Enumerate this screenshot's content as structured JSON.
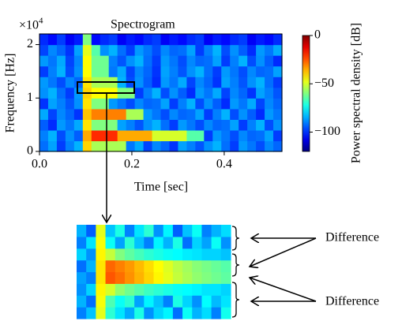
{
  "chart_data": [
    {
      "type": "spectrogram",
      "title": "Spectrogram",
      "xlabel": "Time [sec]",
      "ylabel": "Frequency [Hz]",
      "colorbar_label": "Power spectral density [dB]",
      "y_multiplier": "×10",
      "y_multiplier_exp": "4",
      "colormap": "jet",
      "clim": [
        -120,
        0
      ],
      "colorbar_ticks": [
        0,
        {
          "value": -50,
          "label": "−50"
        },
        {
          "value": -100,
          "label": "−100"
        }
      ],
      "xlim": [
        0,
        0.525
      ],
      "xticks": [
        {
          "value": 0,
          "label": "0.0"
        },
        0.2,
        0.4
      ],
      "ylim": [
        0,
        22000
      ],
      "yticks": [
        0,
        {
          "value": 10000,
          "label": "1"
        },
        {
          "value": 20000,
          "label": "2"
        }
      ],
      "z": [
        [
          -92,
          -86,
          -98,
          -90,
          -84,
          -40,
          -55,
          -55,
          -55,
          -55,
          -91,
          -85,
          -97,
          -89,
          -93,
          -99,
          -86,
          -90,
          -95,
          -88,
          -84,
          -92,
          -98,
          -87,
          -91,
          -96,
          -89,
          -93
        ],
        [
          -90,
          -84,
          -96,
          -88,
          -94,
          -35,
          -20,
          -20,
          -20,
          -35,
          -35,
          -35,
          -35,
          -50,
          -50,
          -50,
          -50,
          -65,
          -65,
          -98,
          -87,
          -91,
          -96,
          -89,
          -93,
          -92,
          -86,
          -98
        ],
        [
          -94,
          -100,
          -87,
          -91,
          -85,
          -42,
          -60,
          -60,
          -60,
          -86,
          -90,
          -95,
          -88,
          -84,
          -92,
          -98,
          -87,
          -91,
          -96,
          -89,
          -93,
          -92,
          -86,
          -98,
          -90,
          -84,
          -96,
          -88
        ],
        [
          -85,
          -97,
          -89,
          -93,
          -99,
          -38,
          -30,
          -30,
          -30,
          -30,
          -55,
          -55,
          -87,
          -91,
          -96,
          -89,
          -93,
          -92,
          -86,
          -98,
          -90,
          -84,
          -96,
          -88,
          -94,
          -100,
          -87,
          -91
        ],
        [
          -99,
          -86,
          -90,
          -95,
          -88,
          -42,
          -60,
          -60,
          -87,
          -91,
          -96,
          -89,
          -93,
          -92,
          -86,
          -98,
          -90,
          -84,
          -96,
          -88,
          -94,
          -100,
          -87,
          -91,
          -85,
          -97,
          -89,
          -93
        ],
        [
          -88,
          -84,
          -92,
          -98,
          -87,
          -40,
          -45,
          -45,
          -45,
          -60,
          -60,
          -98,
          -90,
          -84,
          -96,
          -88,
          -94,
          -100,
          -87,
          -91,
          -85,
          -97,
          -89,
          -93,
          -99,
          -86,
          -90,
          -95
        ],
        [
          -87,
          -91,
          -96,
          -89,
          -93,
          -42,
          -55,
          -55,
          -55,
          -84,
          -96,
          -88,
          -94,
          -100,
          -87,
          -91,
          -85,
          -97,
          -89,
          -93,
          -99,
          -86,
          -90,
          -95,
          -88,
          -84,
          -92,
          -98
        ],
        [
          -98,
          -90,
          -84,
          -96,
          -88,
          -45,
          -62,
          -62,
          -91,
          -85,
          -97,
          -89,
          -93,
          -99,
          -86,
          -90,
          -95,
          -88,
          -84,
          -92,
          -98,
          -87,
          -91,
          -96,
          -89,
          -93,
          -92,
          -86
        ],
        [
          -87,
          -91,
          -85,
          -97,
          -89,
          -45,
          -62,
          -62,
          -90,
          -95,
          -88,
          -84,
          -92,
          -98,
          -87,
          -91,
          -96,
          -89,
          -93,
          -92,
          -86,
          -98,
          -90,
          -84,
          -96,
          -88,
          -94,
          -100
        ],
        [
          -97,
          -89,
          -93,
          -99,
          -86,
          -48,
          -65,
          -88,
          -84,
          -92,
          -98,
          -87,
          -91,
          -96,
          -89,
          -93,
          -92,
          -86,
          -98,
          -90,
          -84,
          -96,
          -88,
          -94,
          -100,
          -87,
          -91,
          -85
        ],
        [
          -100,
          -104,
          -98,
          -106,
          -102,
          -60,
          -104,
          -100,
          -98,
          -106,
          -102,
          -104,
          -100,
          -98,
          -106,
          -102,
          -104,
          -100,
          -98,
          -106,
          -102,
          -104,
          -100,
          -98,
          -106,
          -102,
          -104,
          -100
        ]
      ]
    },
    {
      "type": "heatmap",
      "colormap": "jet",
      "clim": [
        -120,
        0
      ],
      "annotations": [
        "Difference",
        "Difference"
      ],
      "z": [
        [
          -90,
          -82,
          -48,
          -70,
          -78,
          -85,
          -72,
          -88,
          -80,
          -76,
          -92,
          -74,
          -84,
          -79,
          -90,
          -73
        ],
        [
          -84,
          -92,
          -46,
          -66,
          -74,
          -70,
          -86,
          -76,
          -82,
          -90,
          -72,
          -80,
          -88,
          -75,
          -83,
          -78
        ],
        [
          -88,
          -80,
          -44,
          -50,
          -58,
          -62,
          -65,
          -68,
          -70,
          -72,
          -74,
          -75,
          -76,
          -78,
          -78,
          -80
        ],
        [
          -86,
          -90,
          -42,
          -25,
          -28,
          -32,
          -36,
          -40,
          -44,
          -48,
          -52,
          -55,
          -58,
          -60,
          -62,
          -64
        ],
        [
          -92,
          -84,
          -42,
          -27,
          -30,
          -33,
          -37,
          -41,
          -45,
          -49,
          -53,
          -56,
          -59,
          -61,
          -63,
          -65
        ],
        [
          -80,
          -88,
          -44,
          -52,
          -60,
          -64,
          -67,
          -70,
          -72,
          -74,
          -75,
          -77,
          -78,
          -80,
          -80,
          -82
        ],
        [
          -90,
          -78,
          -46,
          -74,
          -86,
          -70,
          -82,
          -90,
          -76,
          -84,
          -72,
          -92,
          -80,
          -86,
          -74,
          -88
        ],
        [
          -84,
          -94,
          -48,
          -82,
          -72,
          -90,
          -78,
          -70,
          -88,
          -76,
          -94,
          -82,
          -74,
          -90,
          -84,
          -79
        ]
      ]
    }
  ]
}
